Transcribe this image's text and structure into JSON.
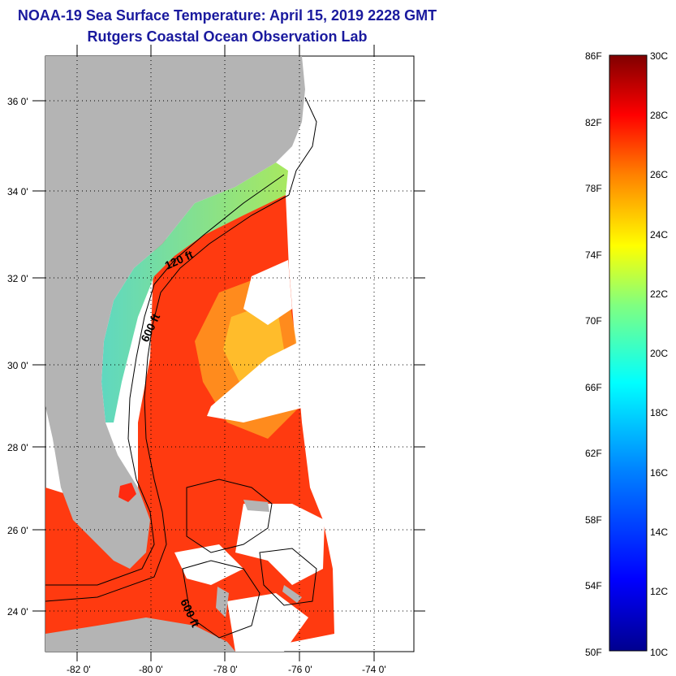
{
  "header": {
    "title": "NOAA-19 Sea Surface Temperature:  April 15, 2019 2228 GMT",
    "subtitle": "Rutgers Coastal Ocean Observation Lab"
  },
  "map": {
    "lat_labels": [
      "36 0'",
      "34 0'",
      "32 0'",
      "30 0'",
      "28 0'",
      "26 0'",
      "24 0'"
    ],
    "lon_labels": [
      "-82 0'",
      "-80 0'",
      "-78 0'",
      "-76 0'",
      "-74 0'"
    ],
    "contour_labels": [
      "120 ft",
      "600 ft",
      "600 ft"
    ]
  },
  "colorbar": {
    "fahrenheit_labels": [
      "86F",
      "82F",
      "78F",
      "74F",
      "70F",
      "66F",
      "62F",
      "58F",
      "54F",
      "50F"
    ],
    "celsius_labels": [
      "30C",
      "28C",
      "26C",
      "24C",
      "22C",
      "20C",
      "18C",
      "16C",
      "14C",
      "12C",
      "10C"
    ],
    "colors": [
      "#00008f",
      "#0000ff",
      "#0080ff",
      "#00ffff",
      "#80ff80",
      "#ffff00",
      "#ff8000",
      "#ff0000",
      "#800000"
    ]
  },
  "colors": {
    "title": "#1a1a9e",
    "land": "#b4b4b4",
    "coastal_water": "#6ee0a0",
    "offshore_water": "#ff3a10"
  }
}
